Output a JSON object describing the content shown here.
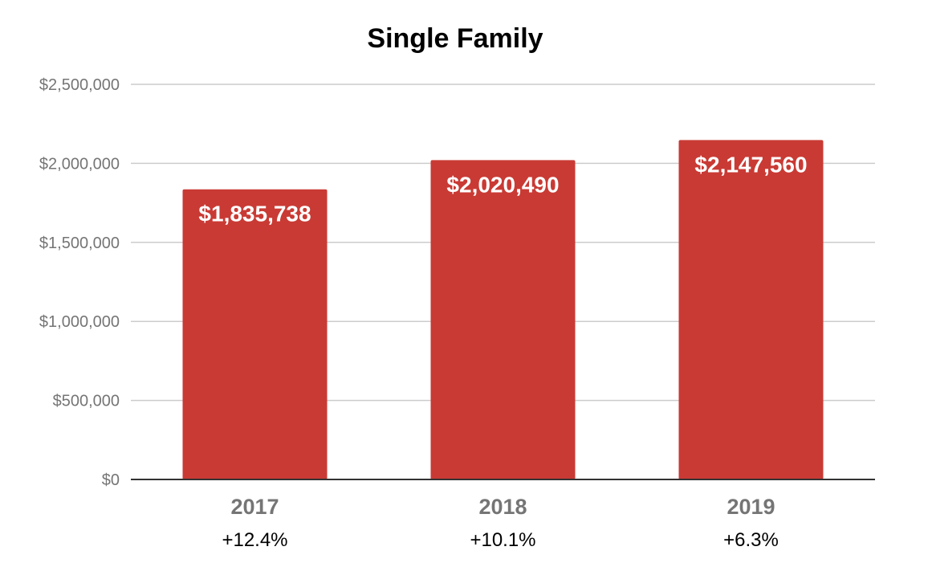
{
  "chart_data": {
    "type": "bar",
    "title": "Single Family",
    "categories": [
      "2017",
      "2018",
      "2019"
    ],
    "values": [
      1835738,
      2020490,
      2147560
    ],
    "value_labels": [
      "$1,835,738",
      "$2,020,490",
      "$2,147,560"
    ],
    "changes": [
      "+12.4%",
      "+10.1%",
      "+6.3%"
    ],
    "ylim": [
      0,
      2500000
    ],
    "yticks": [
      0,
      500000,
      1000000,
      1500000,
      2000000,
      2500000
    ],
    "ytick_labels": [
      "$0",
      "$500,000",
      "$1,000,000",
      "$1,500,000",
      "$2,000,000",
      "$2,500,000"
    ],
    "grid": true,
    "xlabel": "",
    "ylabel": "",
    "colors": {
      "bar": "#c93a34",
      "grid": "#cccccc",
      "baseline": "#333333"
    }
  }
}
